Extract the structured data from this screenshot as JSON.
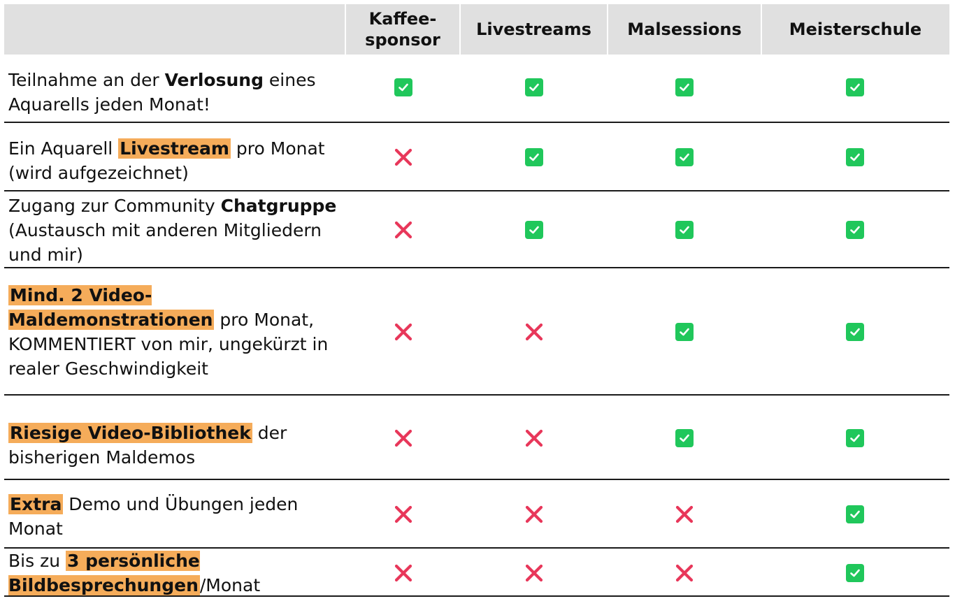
{
  "table": {
    "columns": [
      {
        "label": "Kaffee-\nsponsor"
      },
      {
        "label": "Livestreams"
      },
      {
        "label": "Malsessions"
      },
      {
        "label": "Meisterschule"
      }
    ],
    "rows": [
      {
        "feature": [
          {
            "text": "Teilnahme an der ",
            "style": "normal"
          },
          {
            "text": "Verlosung",
            "style": "bold"
          },
          {
            "text": " eines Aquarells jeden Monat!",
            "style": "normal"
          }
        ],
        "availability": [
          "check",
          "check",
          "check",
          "check"
        ]
      },
      {
        "feature": [
          {
            "text": "Ein Aquarell ",
            "style": "normal"
          },
          {
            "text": "Livestream",
            "style": "highlight"
          },
          {
            "text": " pro Monat (wird aufgezeichnet)",
            "style": "normal"
          }
        ],
        "availability": [
          "cross",
          "check",
          "check",
          "check"
        ]
      },
      {
        "feature": [
          {
            "text": "Zugang zur Community ",
            "style": "normal"
          },
          {
            "text": "Chatgruppe",
            "style": "bold"
          },
          {
            "text": " (Austausch mit anderen Mitgliedern und mir)",
            "style": "normal"
          }
        ],
        "availability": [
          "cross",
          "check",
          "check",
          "check"
        ]
      },
      {
        "feature": [
          {
            "text": "Mind. 2 Video-Maldemonstrationen",
            "style": "highlight"
          },
          {
            "text": " pro Monat, KOMMENTIERT von mir, ungekürzt in realer Geschwindigkeit",
            "style": "normal"
          }
        ],
        "availability": [
          "cross",
          "cross",
          "check",
          "check"
        ]
      },
      {
        "feature": [
          {
            "text": "Riesige Video-Bibliothek",
            "style": "highlight"
          },
          {
            "text": " der bisherigen Maldemos",
            "style": "normal"
          }
        ],
        "availability": [
          "cross",
          "cross",
          "check",
          "check"
        ]
      },
      {
        "feature": [
          {
            "text": "Extra",
            "style": "highlight"
          },
          {
            "text": " Demo und Übungen jeden Monat",
            "style": "normal"
          }
        ],
        "availability": [
          "cross",
          "cross",
          "cross",
          "check"
        ]
      },
      {
        "feature": [
          {
            "text": "Bis zu ",
            "style": "normal"
          },
          {
            "text": "3 persönliche Bildbesprechungen",
            "style": "highlight"
          },
          {
            "text": "/Monat",
            "style": "normal"
          }
        ],
        "availability": [
          "cross",
          "cross",
          "cross",
          "check"
        ]
      }
    ]
  },
  "colors": {
    "check": "#20c75b",
    "cross": "#e8375a",
    "highlight": "#f5ac5a",
    "header_bg": "#e0e0e0"
  },
  "icons": {
    "check": "checkbox-checked-icon",
    "cross": "cross-icon"
  }
}
